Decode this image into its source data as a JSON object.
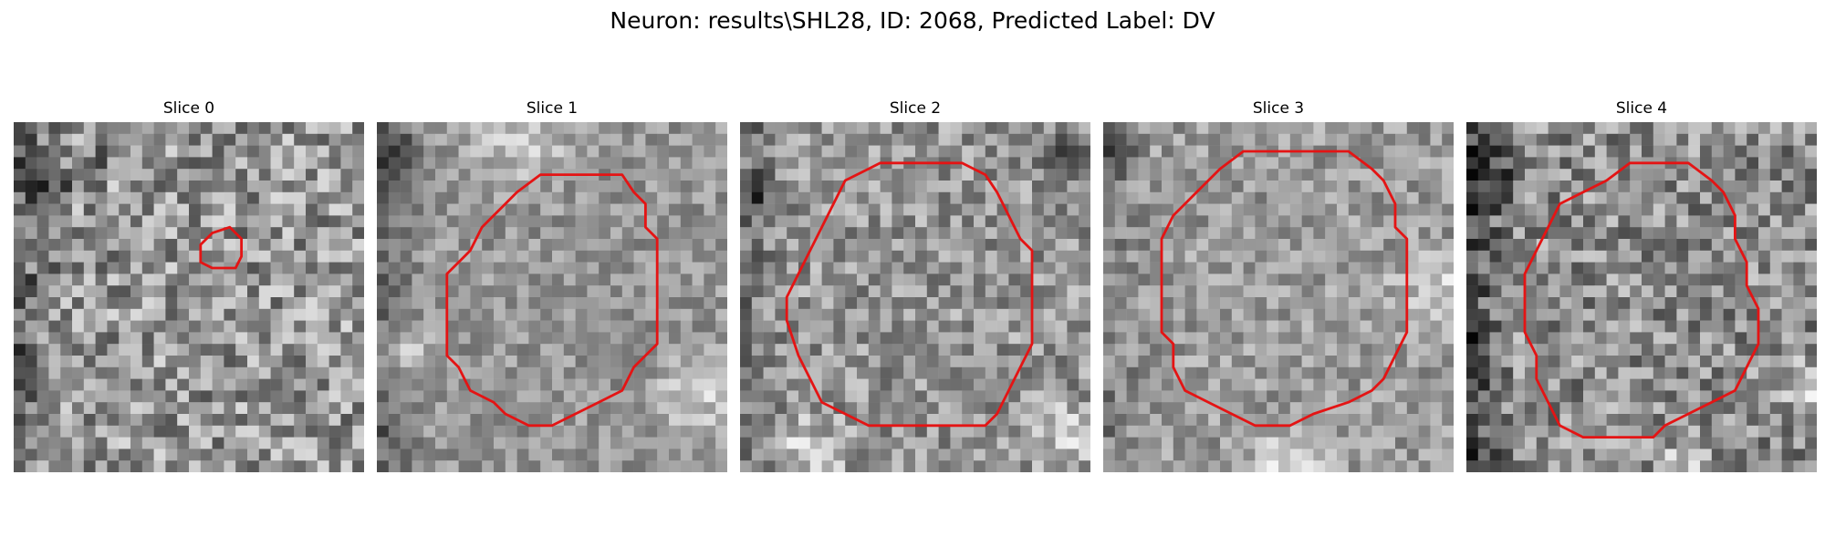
{
  "title": "Neuron: results\\SHL28, ID: 2068, Predicted Label: DV",
  "outline_color": "#e41414",
  "slices": [
    {
      "label": "Slice 0",
      "seed": 11,
      "outline": [
        [
          17,
          9.5
        ],
        [
          16,
          10.5
        ],
        [
          16,
          12
        ],
        [
          17,
          12.5
        ],
        [
          19,
          12.5
        ],
        [
          19.5,
          11.5
        ],
        [
          19.5,
          10
        ],
        [
          18.5,
          9
        ]
      ]
    },
    {
      "label": "Slice 1",
      "seed": 29,
      "outline": [
        [
          14,
          4.5
        ],
        [
          21,
          4.5
        ],
        [
          22,
          6
        ],
        [
          23,
          7
        ],
        [
          23,
          9
        ],
        [
          24,
          10
        ],
        [
          24,
          19
        ],
        [
          22,
          21
        ],
        [
          21,
          23
        ],
        [
          19,
          24
        ],
        [
          17,
          25
        ],
        [
          15,
          26
        ],
        [
          13,
          26
        ],
        [
          11,
          25
        ],
        [
          10,
          24
        ],
        [
          8,
          23
        ],
        [
          7,
          21
        ],
        [
          6,
          20
        ],
        [
          6,
          13
        ],
        [
          8,
          11
        ],
        [
          9,
          9
        ],
        [
          10,
          8
        ],
        [
          11,
          7
        ],
        [
          12,
          6
        ]
      ]
    },
    {
      "label": "Slice 2",
      "seed": 47,
      "outline": [
        [
          12,
          3.5
        ],
        [
          19,
          3.5
        ],
        [
          21,
          4.5
        ],
        [
          22,
          6
        ],
        [
          23,
          8
        ],
        [
          24,
          10
        ],
        [
          25,
          11
        ],
        [
          25,
          19
        ],
        [
          24,
          21
        ],
        [
          23,
          23
        ],
        [
          22,
          25
        ],
        [
          21,
          26
        ],
        [
          11,
          26
        ],
        [
          9,
          25
        ],
        [
          7,
          24
        ],
        [
          6,
          22
        ],
        [
          5,
          20
        ],
        [
          4,
          17
        ],
        [
          4,
          15
        ],
        [
          5,
          13
        ],
        [
          6,
          11
        ],
        [
          7,
          9
        ],
        [
          8,
          7
        ],
        [
          9,
          5
        ],
        [
          11,
          4
        ]
      ]
    },
    {
      "label": "Slice 3",
      "seed": 71,
      "outline": [
        [
          12,
          2.5
        ],
        [
          21,
          2.5
        ],
        [
          23,
          4
        ],
        [
          24,
          5
        ],
        [
          25,
          7
        ],
        [
          25,
          9
        ],
        [
          26,
          10
        ],
        [
          26,
          18
        ],
        [
          25,
          20
        ],
        [
          24,
          22
        ],
        [
          23,
          23
        ],
        [
          21,
          24
        ],
        [
          18,
          25
        ],
        [
          16,
          26
        ],
        [
          13,
          26
        ],
        [
          11,
          25
        ],
        [
          9,
          24
        ],
        [
          7,
          23
        ],
        [
          6,
          21
        ],
        [
          6,
          19
        ],
        [
          5,
          18
        ],
        [
          5,
          10
        ],
        [
          6,
          8
        ],
        [
          7,
          7
        ],
        [
          8,
          6
        ],
        [
          9,
          5
        ],
        [
          10,
          4
        ]
      ]
    },
    {
      "label": "Slice 4",
      "seed": 93,
      "outline": [
        [
          14,
          3.5
        ],
        [
          19,
          3.5
        ],
        [
          21,
          5
        ],
        [
          22,
          6
        ],
        [
          23,
          8
        ],
        [
          23,
          10
        ],
        [
          24,
          12
        ],
        [
          24,
          14
        ],
        [
          25,
          16
        ],
        [
          25,
          19
        ],
        [
          24,
          21
        ],
        [
          23,
          23
        ],
        [
          21,
          24
        ],
        [
          19,
          25
        ],
        [
          17,
          26
        ],
        [
          16,
          27
        ],
        [
          10,
          27
        ],
        [
          8,
          26
        ],
        [
          7,
          24
        ],
        [
          6,
          22
        ],
        [
          6,
          20
        ],
        [
          5,
          18
        ],
        [
          5,
          13
        ],
        [
          6,
          11
        ],
        [
          7,
          9
        ],
        [
          8,
          7
        ],
        [
          10,
          6
        ],
        [
          12,
          5
        ]
      ]
    }
  ]
}
